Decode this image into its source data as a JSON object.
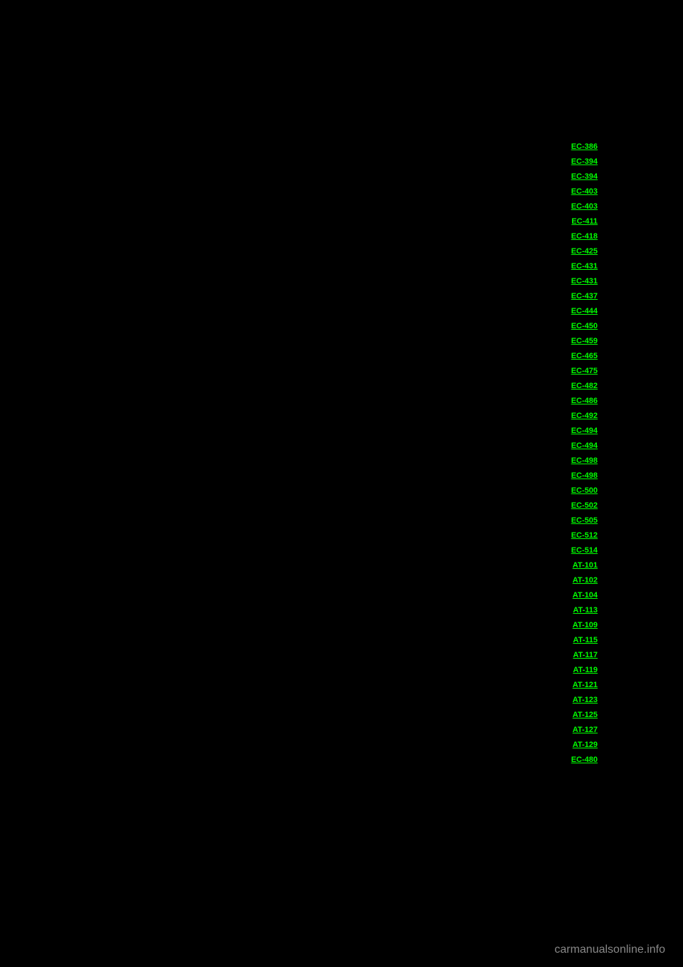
{
  "links": [
    {
      "label": "EC-386"
    },
    {
      "label": "EC-394"
    },
    {
      "label": "EC-394"
    },
    {
      "label": "EC-403"
    },
    {
      "label": "EC-403"
    },
    {
      "label": "EC-411"
    },
    {
      "label": "EC-418"
    },
    {
      "label": "EC-425"
    },
    {
      "label": "EC-431"
    },
    {
      "label": "EC-431"
    },
    {
      "label": "EC-437"
    },
    {
      "label": "EC-444"
    },
    {
      "label": "EC-450"
    },
    {
      "label": "EC-459"
    },
    {
      "label": "EC-465"
    },
    {
      "label": "EC-475"
    },
    {
      "label": "EC-482"
    },
    {
      "label": "EC-486"
    },
    {
      "label": "EC-492"
    },
    {
      "label": "EC-494"
    },
    {
      "label": "EC-494"
    },
    {
      "label": "EC-498"
    },
    {
      "label": "EC-498"
    },
    {
      "label": "EC-500"
    },
    {
      "label": "EC-502"
    },
    {
      "label": "EC-505"
    },
    {
      "label": "EC-512"
    },
    {
      "label": "EC-514"
    },
    {
      "label": "AT-101"
    },
    {
      "label": "AT-102"
    },
    {
      "label": "AT-104"
    },
    {
      "label": "AT-113"
    },
    {
      "label": "AT-109"
    },
    {
      "label": "AT-115"
    },
    {
      "label": "AT-117"
    },
    {
      "label": "AT-119"
    },
    {
      "label": "AT-121"
    },
    {
      "label": "AT-123"
    },
    {
      "label": "AT-125"
    },
    {
      "label": "AT-127"
    },
    {
      "label": "AT-129"
    },
    {
      "label": "EC-480"
    }
  ],
  "watermark": "carmanualsonline.info",
  "colors": {
    "background": "#000000",
    "link": "#00ff00",
    "watermark": "#888888"
  }
}
